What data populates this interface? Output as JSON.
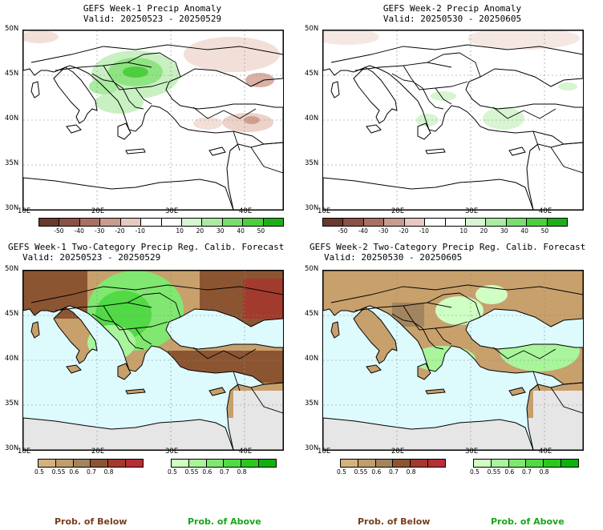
{
  "panels": [
    {
      "title": "GEFS Week-1 Precip Anomaly",
      "valid": "Valid: 20250523 - 20250529"
    },
    {
      "title": "GEFS Week-2 Precip Anomaly",
      "valid": "Valid: 20250530 - 20250605"
    },
    {
      "title": "GEFS Week-1 Two-Category Precip Reg. Calib. Forecast",
      "valid": "Valid: 20250523 - 20250529"
    },
    {
      "title": "GEFS Week-2 Two-Category Precip Reg. Calib. Forecast",
      "valid": "Valid: 20250530 - 20250605"
    }
  ],
  "axes": {
    "lat_labels": [
      "50N",
      "45N",
      "40N",
      "35N",
      "30N"
    ],
    "lon_labels": [
      "10E",
      "20E",
      "30E",
      "40E"
    ]
  },
  "anomaly_colorbar": {
    "colors": [
      "#6b3a2e",
      "#8a5244",
      "#a97062",
      "#c99a8e",
      "#e6c9c0",
      "#ffffff",
      "#ffffff",
      "#d6f5d0",
      "#a9eba0",
      "#7ade6f",
      "#4ccf3e",
      "#1fae1b"
    ],
    "ticks": [
      "-50",
      "-40",
      "-30",
      "-20",
      "-10",
      "10",
      "20",
      "30",
      "40",
      "50"
    ]
  },
  "below_colorbar": {
    "colors": [
      "#d3b27e",
      "#bf9d6d",
      "#a2855f",
      "#8c5532",
      "#a23b2e",
      "#b62e36"
    ],
    "ticks": [
      "0.5",
      "0.55",
      "0.6",
      "0.7",
      "0.8"
    ]
  },
  "above_colorbar": {
    "colors": [
      "#cfffc3",
      "#a8f59b",
      "#80e870",
      "#52d946",
      "#2bc61f",
      "#10b010"
    ],
    "ticks": [
      "0.5",
      "0.55",
      "0.6",
      "0.7",
      "0.8"
    ]
  },
  "legend": {
    "below": "Prob. of Below",
    "above": "Prob. of Above"
  },
  "colors": {
    "sea": "#ddfafd",
    "land_below": "#c7a06c",
    "land_above": "#56db45",
    "nodata": "#e6e6e6",
    "below_label": "#7a3b1e",
    "above_label": "#1aa51a"
  }
}
